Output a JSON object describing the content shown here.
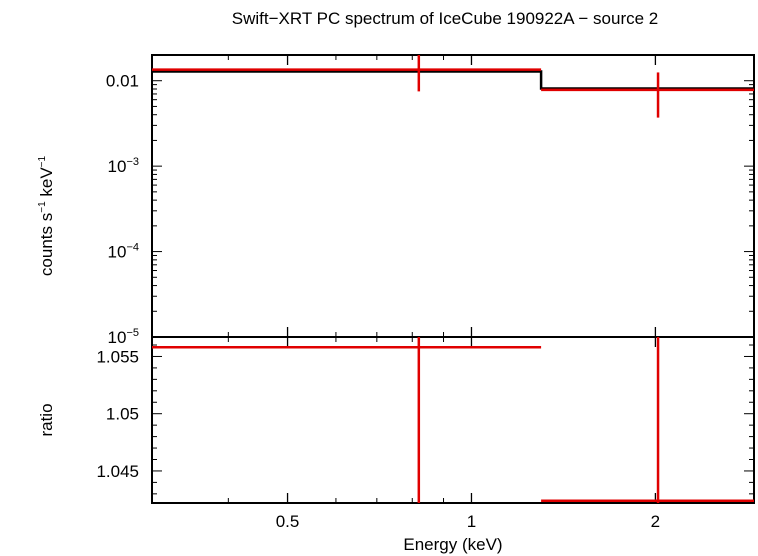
{
  "title": "Swift−XRT PC spectrum of IceCube 190922A − source 2",
  "colors": {
    "data": "#e00000",
    "model": "#000000",
    "axes": "#000000"
  },
  "chart_data": [
    {
      "type": "line",
      "panel": "spectrum",
      "xscale": "log",
      "yscale": "log",
      "xlim": [
        0.3,
        2.9
      ],
      "ylim": [
        1e-05,
        0.02
      ],
      "ylabel_parts": [
        "counts s",
        "−1",
        " keV",
        "−1"
      ],
      "ytick_labels": [
        {
          "value": 0.01,
          "base": "0.01",
          "sup": ""
        },
        {
          "value": 0.001,
          "base": "10",
          "sup": "−3"
        },
        {
          "value": 0.0001,
          "base": "10",
          "sup": "−4"
        },
        {
          "value": 1e-05,
          "base": "10",
          "sup": "−5"
        }
      ],
      "series": [
        {
          "kind": "data",
          "points": [
            {
              "x": 0.82,
              "xlo": 0.3,
              "xhi": 1.3,
              "y": 0.0135,
              "ylo": 0.0075,
              "yhi": 0.02
            },
            {
              "x": 2.02,
              "xlo": 1.3,
              "xhi": 2.9,
              "y": 0.0078,
              "ylo": 0.0037,
              "yhi": 0.0125
            }
          ]
        },
        {
          "kind": "model",
          "steps": [
            {
              "xlo": 0.3,
              "xhi": 1.3,
              "y": 0.0128
            },
            {
              "xlo": 1.3,
              "xhi": 2.9,
              "y": 0.0081
            }
          ]
        }
      ]
    },
    {
      "type": "line",
      "panel": "ratio",
      "xscale": "log",
      "yscale": "linear",
      "xlim": [
        0.3,
        2.9
      ],
      "ylim": [
        1.0422,
        1.0567
      ],
      "xlabel": "Energy (keV)",
      "ylabel": "ratio",
      "xtick_labels": [
        {
          "value": 0.5,
          "label": "0.5"
        },
        {
          "value": 1,
          "label": "1"
        },
        {
          "value": 2,
          "label": "2"
        }
      ],
      "ytick_labels": [
        {
          "value": 1.045,
          "label": "1.045"
        },
        {
          "value": 1.05,
          "label": "1.05"
        },
        {
          "value": 1.055,
          "label": "1.055"
        }
      ],
      "series": [
        {
          "kind": "data",
          "points": [
            {
              "x": 0.82,
              "xlo": 0.3,
              "xhi": 1.3,
              "y": 1.0558,
              "ylo": 1.0422,
              "yhi": 1.0567
            },
            {
              "x": 2.02,
              "xlo": 1.3,
              "xhi": 2.9,
              "y": 1.0424,
              "ylo": 1.0422,
              "yhi": 1.0567
            }
          ]
        }
      ]
    }
  ]
}
